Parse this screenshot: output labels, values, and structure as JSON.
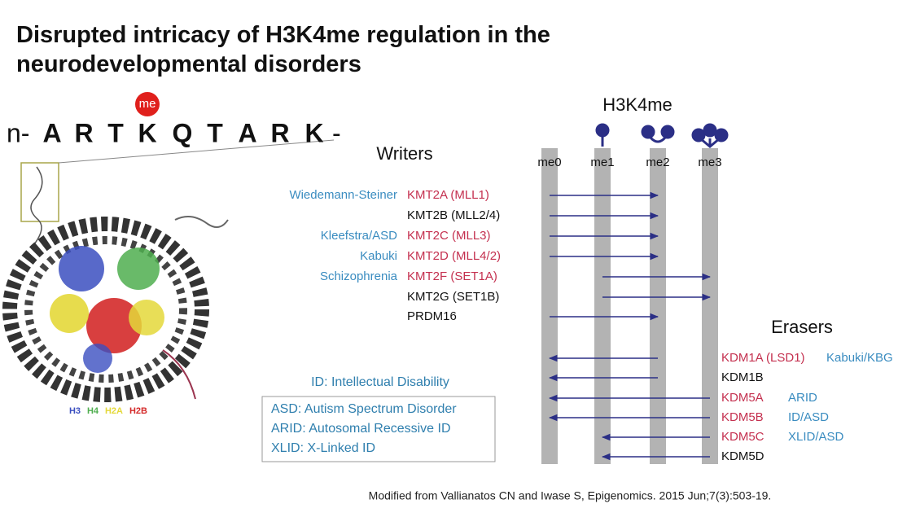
{
  "title": [
    "Disrupted intricacy of H3K4me regulation in the",
    "neurodevelopmental disorders"
  ],
  "sequence": {
    "prefix": "n-",
    "residues": [
      "A",
      "R",
      "T",
      "K",
      "Q",
      "T",
      "A",
      "R",
      "K"
    ],
    "suffix": "-",
    "mark": "me"
  },
  "histones": [
    "H3",
    "H4",
    "H2A",
    "H2B"
  ],
  "panel": {
    "title": "H3K4me",
    "states": [
      "me0",
      "me1",
      "me2",
      "me3"
    ]
  },
  "writers": {
    "heading": "Writers",
    "rows": [
      {
        "disorder": "Wiedemann-Steiner",
        "gene": "KMT2A (MLL1)"
      },
      {
        "gene": "KMT2B (MLL2/4)"
      },
      {
        "disorder": "Kleefstra/ASD",
        "gene": "KMT2C (MLL3)"
      },
      {
        "disorder": "Kabuki",
        "gene": "KMT2D (MLL4/2)"
      },
      {
        "disorder": "Schizophrenia",
        "gene": "KMT2F (SET1A)"
      },
      {
        "gene": "KMT2G (SET1B)"
      },
      {
        "gene": "PRDM16"
      }
    ]
  },
  "erasers": {
    "heading": "Erasers",
    "rows": [
      {
        "gene": "KDM1A (LSD1)",
        "disorder": "Kabuki/KBG"
      },
      {
        "gene": "KDM1B"
      },
      {
        "gene": "KDM5A",
        "disorder": "ARID"
      },
      {
        "gene": "KDM5B",
        "disorder": "ID/ASD"
      },
      {
        "gene": "KDM5C",
        "disorder": "XLID/ASD"
      },
      {
        "gene": "KDM5D"
      }
    ]
  },
  "abbreviations": {
    "heading": "ID: Intellectual Disability",
    "items": [
      "ASD: Autism Spectrum Disorder",
      "ARID: Autosomal Recessive ID",
      "XLID: X-Linked ID"
    ]
  },
  "citation": "Modified from Vallianatos CN and Iwase S, Epigenomics. 2015 Jun;7(3):503-19."
}
